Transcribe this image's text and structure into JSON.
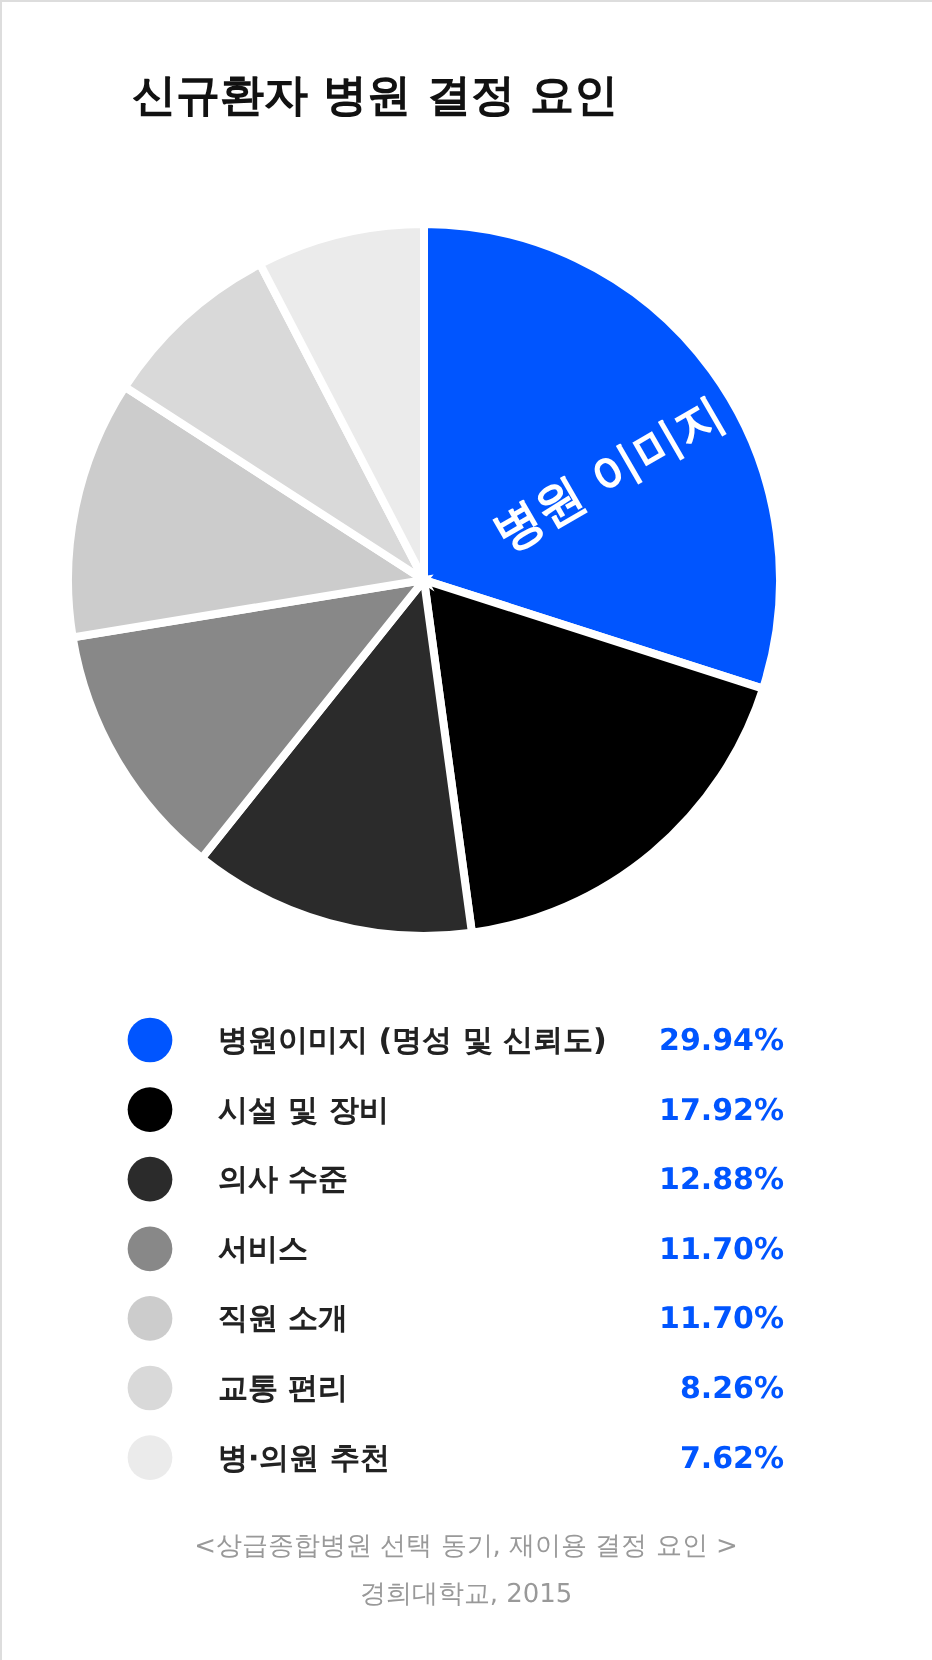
{
  "chart_data": {
    "type": "pie",
    "title": "신규환자 병원 결정 요인",
    "categories": [
      "병원이미지 (명성 및 신뢰도)",
      "시설 및 장비",
      "의사 수준",
      "서비스",
      "직원 소개",
      "교통 편리",
      "병·의원 추천"
    ],
    "values": [
      29.94,
      17.92,
      12.88,
      11.7,
      11.7,
      8.26,
      7.62
    ],
    "colors": [
      "#0055ff",
      "#000000",
      "#2b2b2b",
      "#888888",
      "#cccccc",
      "#d9d9d9",
      "#ebebeb"
    ],
    "value_labels": [
      "29.94%",
      "17.92%",
      "12.88%",
      "11.70%",
      "11.70%",
      "8.26%",
      "7.62%"
    ],
    "legend": "bottom",
    "annotations": [
      "병원 이미지",
      "<상급종합병원 선택 동기, 재이용 결정 요인 >",
      "경희대학교, 2015"
    ]
  }
}
